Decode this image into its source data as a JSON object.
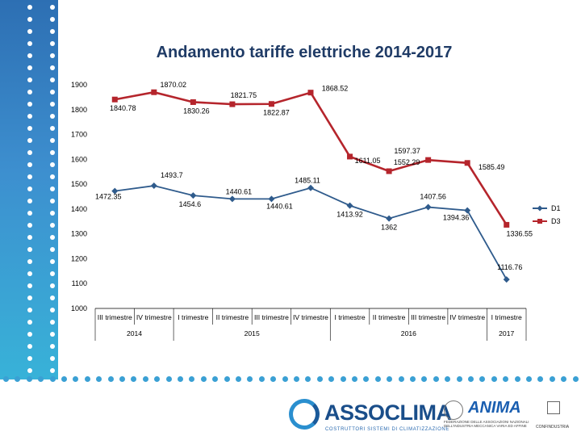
{
  "title": "Andamento tariffe elettriche 2014-2017",
  "chart_data": {
    "type": "line",
    "title": "Andamento tariffe elettriche 2014-2017",
    "categories": [
      "III trimestre",
      "IV trimestre",
      "I trimestre",
      "II trimestre",
      "III trimestre",
      "IV trimestre",
      "I trimestre",
      "II trimestre",
      "III trimestre",
      "IV trimestre",
      "I trimestre"
    ],
    "year_groups": [
      {
        "label": "2014",
        "start": 0,
        "end": 1
      },
      {
        "label": "2015",
        "start": 2,
        "end": 5
      },
      {
        "label": "2016",
        "start": 6,
        "end": 9
      },
      {
        "label": "2017",
        "start": 10,
        "end": 10
      }
    ],
    "ylim": [
      1000,
      1900
    ],
    "yticks": [
      1000,
      1100,
      1200,
      1300,
      1400,
      1500,
      1600,
      1700,
      1800,
      1900
    ],
    "series": [
      {
        "name": "D1",
        "color": "#2f5b8c",
        "marker": "diamond",
        "values": [
          1472.35,
          1493.7,
          1454.6,
          1440.61,
          1440.61,
          1485.11,
          1413.92,
          1362,
          1407.56,
          1394.36,
          1116.76
        ],
        "labels": [
          "1472.35",
          "1493.7",
          "1454.6",
          "1440.61",
          "1440.61",
          "1485.11",
          "1413.92",
          "1362",
          "1407.56",
          "1394.36",
          "1116.76"
        ]
      },
      {
        "name": "D3",
        "color": "#b5252c",
        "marker": "square",
        "values": [
          1840.78,
          1870.02,
          1830.26,
          1821.75,
          1822.87,
          1868.52,
          1611.05,
          1552.29,
          1597.37,
          1585.49,
          1336.55
        ],
        "labels": [
          "1840.78",
          "1870.02",
          "1830.26",
          "1821.75",
          "1822.87",
          "1868.52",
          "1611.05",
          "1552.29",
          "1597.37",
          "1585.49",
          "1336.55"
        ]
      }
    ],
    "legend": "right"
  },
  "logos": {
    "assoclima_name": "ASSOCLIMA",
    "assoclima_sub": "COSTRUTTORI SISTEMI DI CLIMATIZZAZIONE",
    "anima_name": "ANIMA",
    "anima_sub": "FEDERAZIONE DELLE ASSOCIAZIONI NAZIONALI DELL'INDUSTRIA MECCANICA VARIA ED AFFINE",
    "confindustria_name": "CONFINDUSTRIA"
  }
}
